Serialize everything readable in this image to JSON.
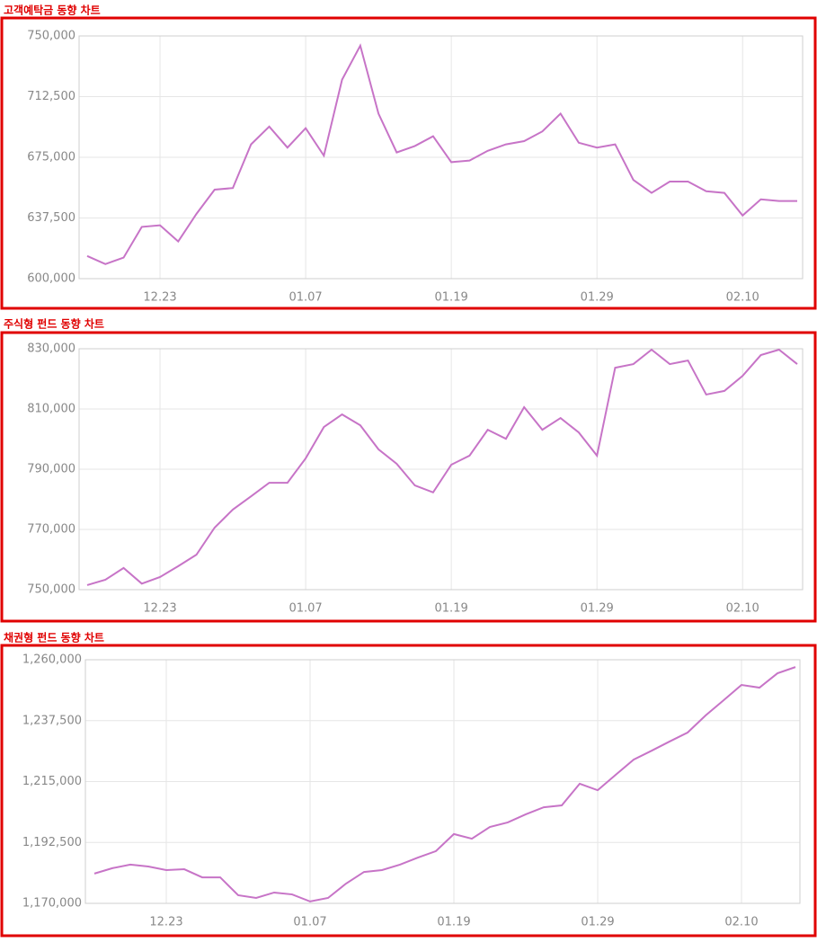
{
  "chart_data": [
    {
      "type": "line",
      "title": "고객예탁금 동향 차트",
      "color": "#c774c7",
      "grid": true,
      "categories": [
        null,
        null,
        null,
        null,
        "12.23",
        null,
        null,
        null,
        null,
        null,
        null,
        null,
        "01.07",
        null,
        null,
        null,
        null,
        null,
        null,
        null,
        "01.19",
        null,
        null,
        null,
        null,
        null,
        null,
        null,
        "01.29",
        null,
        null,
        null,
        null,
        null,
        null,
        null,
        "02.10",
        null,
        null,
        null
      ],
      "values": [
        614000,
        609000,
        613000,
        632000,
        633000,
        623000,
        640000,
        655000,
        656000,
        683000,
        694000,
        681000,
        693000,
        676000,
        723000,
        744000,
        702000,
        678000,
        682000,
        688000,
        672000,
        673000,
        679000,
        683000,
        685000,
        691000,
        702000,
        684000,
        681000,
        683000,
        661000,
        653000,
        660000,
        660000,
        654000,
        653000,
        639000,
        649000,
        648000,
        648000
      ],
      "ylim": [
        600000,
        750000
      ],
      "yticks": [
        {
          "value": 600000,
          "label": "600,000"
        },
        {
          "value": 637500,
          "label": "637,500"
        },
        {
          "value": 675000,
          "label": "675,000"
        },
        {
          "value": 712500,
          "label": "712,500"
        },
        {
          "value": 750000,
          "label": "750,000"
        }
      ]
    },
    {
      "type": "line",
      "title": "주식형 펀드 동향 차트",
      "color": "#c774c7",
      "grid": true,
      "categories": [
        null,
        null,
        null,
        null,
        "12.23",
        null,
        null,
        null,
        null,
        null,
        null,
        null,
        "01.07",
        null,
        null,
        null,
        null,
        null,
        null,
        null,
        "01.19",
        null,
        null,
        null,
        null,
        null,
        null,
        null,
        "01.29",
        null,
        null,
        null,
        null,
        null,
        null,
        null,
        "02.10",
        null,
        null,
        null
      ],
      "values": [
        751500,
        753300,
        757200,
        752000,
        754200,
        757800,
        761600,
        770600,
        776600,
        781000,
        785500,
        785500,
        793600,
        804000,
        808200,
        804600,
        796600,
        791800,
        784600,
        782300,
        791500,
        794500,
        803100,
        800100,
        810600,
        803100,
        807000,
        802200,
        794500,
        823700,
        824900,
        829700,
        824900,
        826100,
        814800,
        816000,
        821000,
        827900,
        829700,
        824900
      ],
      "ylim": [
        750000,
        830000
      ],
      "yticks": [
        {
          "value": 750000,
          "label": "750,000"
        },
        {
          "value": 770000,
          "label": "770,000"
        },
        {
          "value": 790000,
          "label": "790,000"
        },
        {
          "value": 810000,
          "label": "810,000"
        },
        {
          "value": 830000,
          "label": "830,000"
        }
      ]
    },
    {
      "type": "line",
      "title": "채권형 펀드 동향 차트",
      "color": "#c774c7",
      "grid": true,
      "categories": [
        null,
        null,
        null,
        null,
        "12.23",
        null,
        null,
        null,
        null,
        null,
        null,
        null,
        "01.07",
        null,
        null,
        null,
        null,
        null,
        null,
        null,
        "01.19",
        null,
        null,
        null,
        null,
        null,
        null,
        null,
        "01.29",
        null,
        null,
        null,
        null,
        null,
        null,
        null,
        "02.10",
        null,
        null,
        null
      ],
      "values": [
        1181000,
        1183000,
        1184300,
        1183600,
        1182300,
        1182600,
        1179600,
        1179600,
        1173000,
        1172000,
        1174000,
        1173300,
        1170700,
        1172000,
        1177300,
        1181600,
        1182300,
        1184300,
        1186900,
        1189300,
        1195600,
        1193900,
        1198200,
        1199900,
        1202900,
        1205500,
        1206200,
        1214200,
        1211800,
        1217500,
        1223100,
        1226400,
        1229800,
        1233100,
        1239400,
        1245000,
        1250700,
        1249700,
        1255000,
        1257300
      ],
      "ylim": [
        1170000,
        1260000
      ],
      "yticks": [
        {
          "value": 1170000,
          "label": "1,170,000"
        },
        {
          "value": 1192500,
          "label": "1,192,500"
        },
        {
          "value": 1215000,
          "label": "1,215,000"
        },
        {
          "value": 1237500,
          "label": "1,237,500"
        },
        {
          "value": 1260000,
          "label": "1,260,000"
        }
      ]
    }
  ]
}
